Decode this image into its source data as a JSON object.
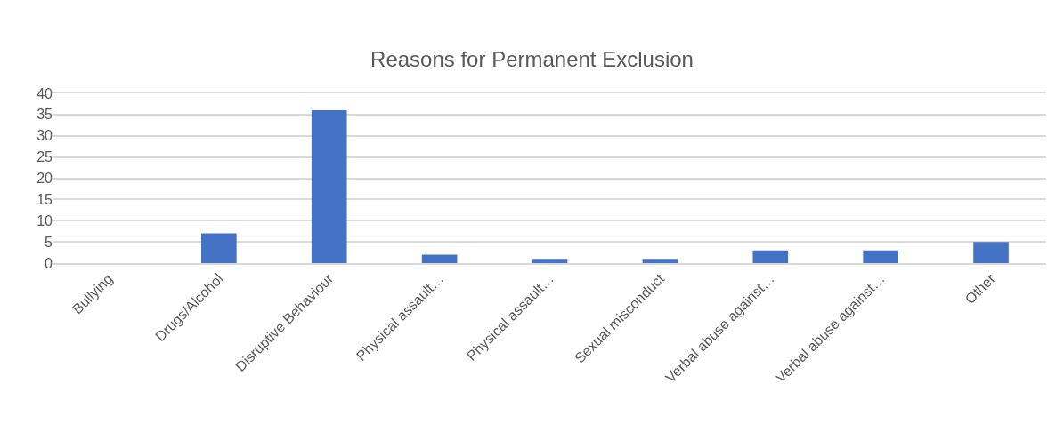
{
  "chart_data": {
    "type": "bar",
    "title": "Reasons for Permanent Exclusion",
    "categories": [
      "Bullying",
      "Drugs/Alcohol",
      "Disruptive Behaviour",
      "Physical assault…",
      "Physical assault…",
      "Sexual misconduct",
      "Verbal abuse against…",
      "Verbal abuse against…",
      "Other"
    ],
    "values": [
      0,
      7,
      36,
      2,
      1,
      1,
      3,
      3,
      5
    ],
    "color": "#4472c4",
    "ylim": [
      0,
      40
    ],
    "yticks": [
      0,
      5,
      10,
      15,
      20,
      25,
      30,
      35,
      40
    ],
    "grid": "y"
  }
}
